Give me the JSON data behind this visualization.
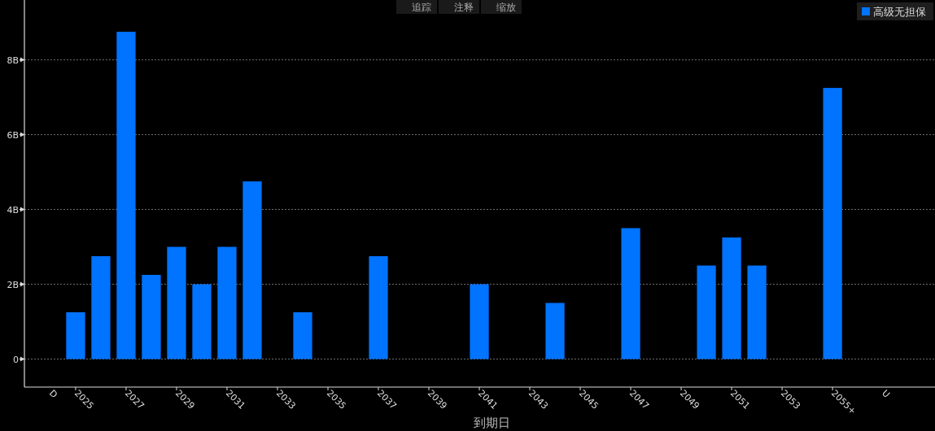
{
  "chart_data": {
    "type": "bar",
    "xlabel": "到期日",
    "categories": [
      "D",
      "2025",
      null,
      "2027",
      null,
      "2029",
      null,
      "2031",
      null,
      "2033",
      null,
      "2035",
      null,
      "2037",
      null,
      "2039",
      null,
      "2041",
      null,
      "2043",
      null,
      "2045",
      null,
      "2047",
      null,
      "2049",
      null,
      "2051",
      null,
      "2053",
      null,
      "2055+",
      null,
      "U"
    ],
    "series": [
      {
        "name": "高级无担保",
        "color": "#0073ff",
        "values": [
          null,
          1.25,
          2.75,
          8.75,
          2.25,
          3,
          2,
          3,
          4.75,
          null,
          1.25,
          null,
          null,
          2.75,
          null,
          null,
          null,
          2,
          null,
          null,
          1.5,
          null,
          null,
          3.5,
          null,
          null,
          2.5,
          3.25,
          2.5,
          null,
          null,
          7.25,
          null,
          null
        ]
      }
    ],
    "ylim": [
      -0.75,
      9.6
    ],
    "yticks": [
      0,
      {
        "value": 2,
        "label": "2B"
      },
      {
        "value": 4,
        "label": "4B"
      },
      {
        "value": 6,
        "label": "6B"
      },
      {
        "value": 8,
        "label": "8B"
      }
    ],
    "grid": "y",
    "legend": "top right",
    "annotations": [
      "追踪",
      "注释",
      "缩放"
    ]
  }
}
